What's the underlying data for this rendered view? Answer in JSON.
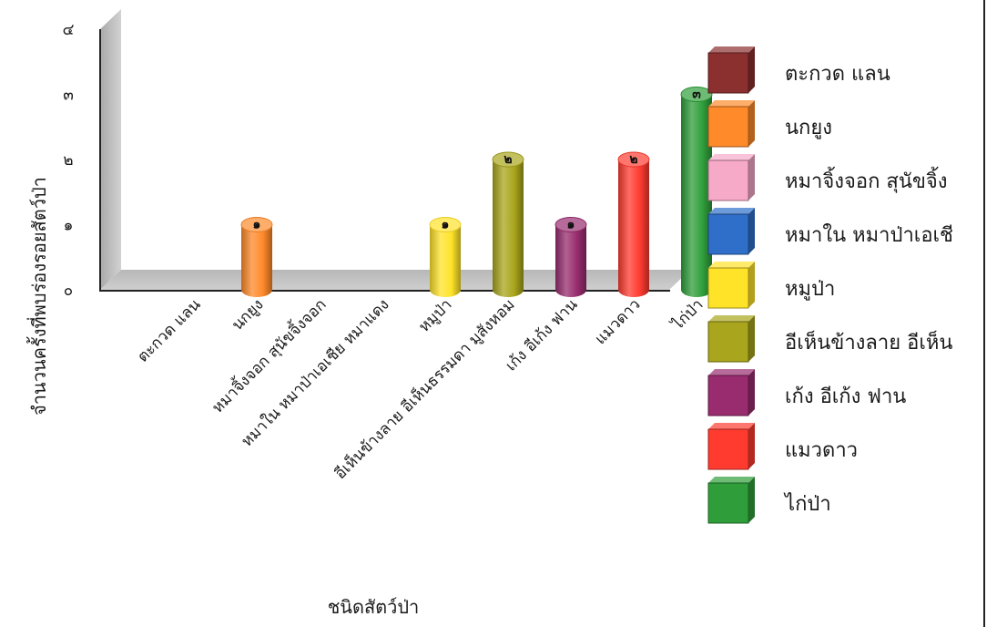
{
  "chart_data": {
    "type": "bar",
    "style": "3d-cylinder",
    "title": "",
    "xlabel": "ชนิดสัตว์ป่า",
    "ylabel": "จำนวนครั้งที่พบร่องรอยสัตว์ป่า",
    "ylim": [
      0,
      4
    ],
    "yticks": [
      0,
      1,
      2,
      3,
      4
    ],
    "ytick_labels": [
      "๐",
      "๑",
      "๒",
      "๓",
      "๔"
    ],
    "categories": [
      "ตะกวด แลน",
      "นกยูง",
      "หมาจิ้งจอก สุนัขจิ้งจอก",
      "หมาใน หมาป่าเอเชีย หมาแดง",
      "หมูป่า",
      "อีเห็นข้างลาย อีเห็นธรรมดา มูสังหอม",
      "เก้ง อีเก้ง ฟาน",
      "แมวดาว",
      "ไก่ป่า"
    ],
    "values": [
      0,
      1,
      0,
      0,
      1,
      2,
      1,
      2,
      3
    ],
    "value_labels": [
      "",
      "๑",
      "",
      "",
      "๑",
      "๒",
      "๑",
      "๒",
      "๓"
    ],
    "colors": [
      "#8b2f2f",
      "#ff8a2a",
      "#f7a9c8",
      "#2f6fc9",
      "#ffe329",
      "#a9a51c",
      "#982c6e",
      "#ff3b30",
      "#2f9e3a"
    ],
    "grid": false,
    "legend": {
      "position": "right",
      "entries": [
        "ตะกวด แลน",
        "นกยูง",
        "หมาจิ้งจอก สุนัขจิ้ง",
        "หมาใน หมาป่าเอเชี",
        "หมูป่า",
        "อีเห็นข้างลาย อีเห็น",
        "เก้ง อีเก้ง ฟาน",
        "แมวดาว",
        "ไก่ป่า"
      ]
    }
  }
}
